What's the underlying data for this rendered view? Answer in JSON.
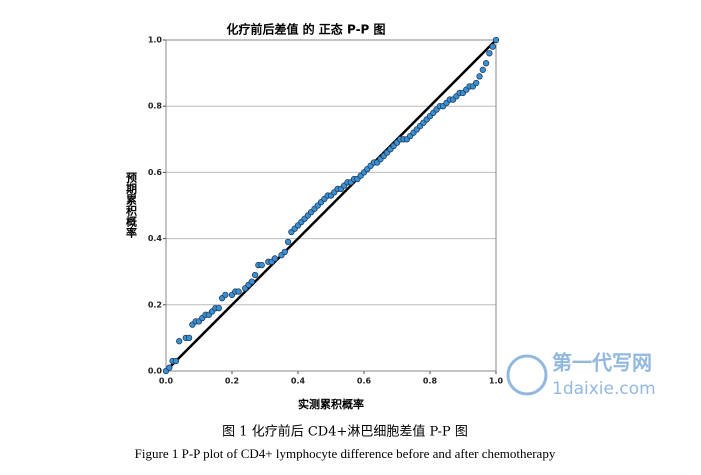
{
  "chart_data": {
    "type": "scatter",
    "title": "化疗前后差值 的 正态 P-P 图",
    "x_label": "实测累积概率",
    "y_label": "预期累积概率",
    "xlim": [
      0,
      1
    ],
    "ylim": [
      0,
      1
    ],
    "xticks": [
      {
        "value": 0,
        "label": "0.0"
      },
      0.2,
      0.4,
      0.6,
      0.8,
      {
        "value": 1,
        "label": "1.0"
      }
    ],
    "yticks": [
      {
        "value": 0,
        "label": "0.0"
      },
      0.2,
      0.4,
      0.6,
      0.8,
      {
        "value": 1,
        "label": "1.0"
      }
    ],
    "grid": "y",
    "color": "#3b8fd3",
    "x": [
      0.0,
      0.01,
      0.02,
      0.03,
      0.04,
      0.06,
      0.07,
      0.08,
      0.09,
      0.1,
      0.11,
      0.12,
      0.13,
      0.14,
      0.15,
      0.16,
      0.17,
      0.18,
      0.2,
      0.21,
      0.22,
      0.24,
      0.25,
      0.26,
      0.27,
      0.28,
      0.29,
      0.31,
      0.32,
      0.33,
      0.35,
      0.36,
      0.37,
      0.38,
      0.39,
      0.4,
      0.41,
      0.42,
      0.43,
      0.44,
      0.45,
      0.46,
      0.47,
      0.48,
      0.49,
      0.5,
      0.51,
      0.52,
      0.53,
      0.54,
      0.55,
      0.56,
      0.57,
      0.58,
      0.59,
      0.6,
      0.61,
      0.62,
      0.63,
      0.64,
      0.65,
      0.66,
      0.67,
      0.68,
      0.69,
      0.7,
      0.71,
      0.72,
      0.73,
      0.74,
      0.75,
      0.76,
      0.77,
      0.78,
      0.79,
      0.8,
      0.81,
      0.82,
      0.83,
      0.84,
      0.85,
      0.86,
      0.87,
      0.88,
      0.89,
      0.9,
      0.91,
      0.92,
      0.93,
      0.94,
      0.95,
      0.96,
      0.97,
      0.98,
      0.99,
      1.0
    ],
    "values": [
      0.0,
      0.01,
      0.03,
      0.03,
      0.09,
      0.1,
      0.1,
      0.14,
      0.15,
      0.15,
      0.16,
      0.17,
      0.17,
      0.18,
      0.19,
      0.19,
      0.22,
      0.23,
      0.23,
      0.24,
      0.24,
      0.25,
      0.26,
      0.27,
      0.29,
      0.32,
      0.32,
      0.33,
      0.33,
      0.34,
      0.35,
      0.36,
      0.39,
      0.42,
      0.43,
      0.44,
      0.45,
      0.46,
      0.47,
      0.48,
      0.49,
      0.5,
      0.51,
      0.52,
      0.53,
      0.53,
      0.54,
      0.55,
      0.55,
      0.56,
      0.57,
      0.57,
      0.58,
      0.58,
      0.59,
      0.6,
      0.61,
      0.62,
      0.63,
      0.63,
      0.64,
      0.65,
      0.66,
      0.67,
      0.68,
      0.69,
      0.7,
      0.7,
      0.7,
      0.71,
      0.72,
      0.73,
      0.74,
      0.75,
      0.76,
      0.77,
      0.78,
      0.79,
      0.8,
      0.8,
      0.81,
      0.82,
      0.82,
      0.83,
      0.84,
      0.84,
      0.85,
      0.86,
      0.86,
      0.87,
      0.89,
      0.91,
      0.93,
      0.96,
      0.98,
      1.0
    ]
  },
  "caption": {
    "zh": "图 1  化疗前后 CD4+淋巴细胞差值 P-P 图",
    "en": "Figure 1    P-P plot of CD4+ lymphocyte difference before and after chemotherapy"
  },
  "watermark": {
    "name": "第一代写网",
    "url": "1daixie.com"
  }
}
